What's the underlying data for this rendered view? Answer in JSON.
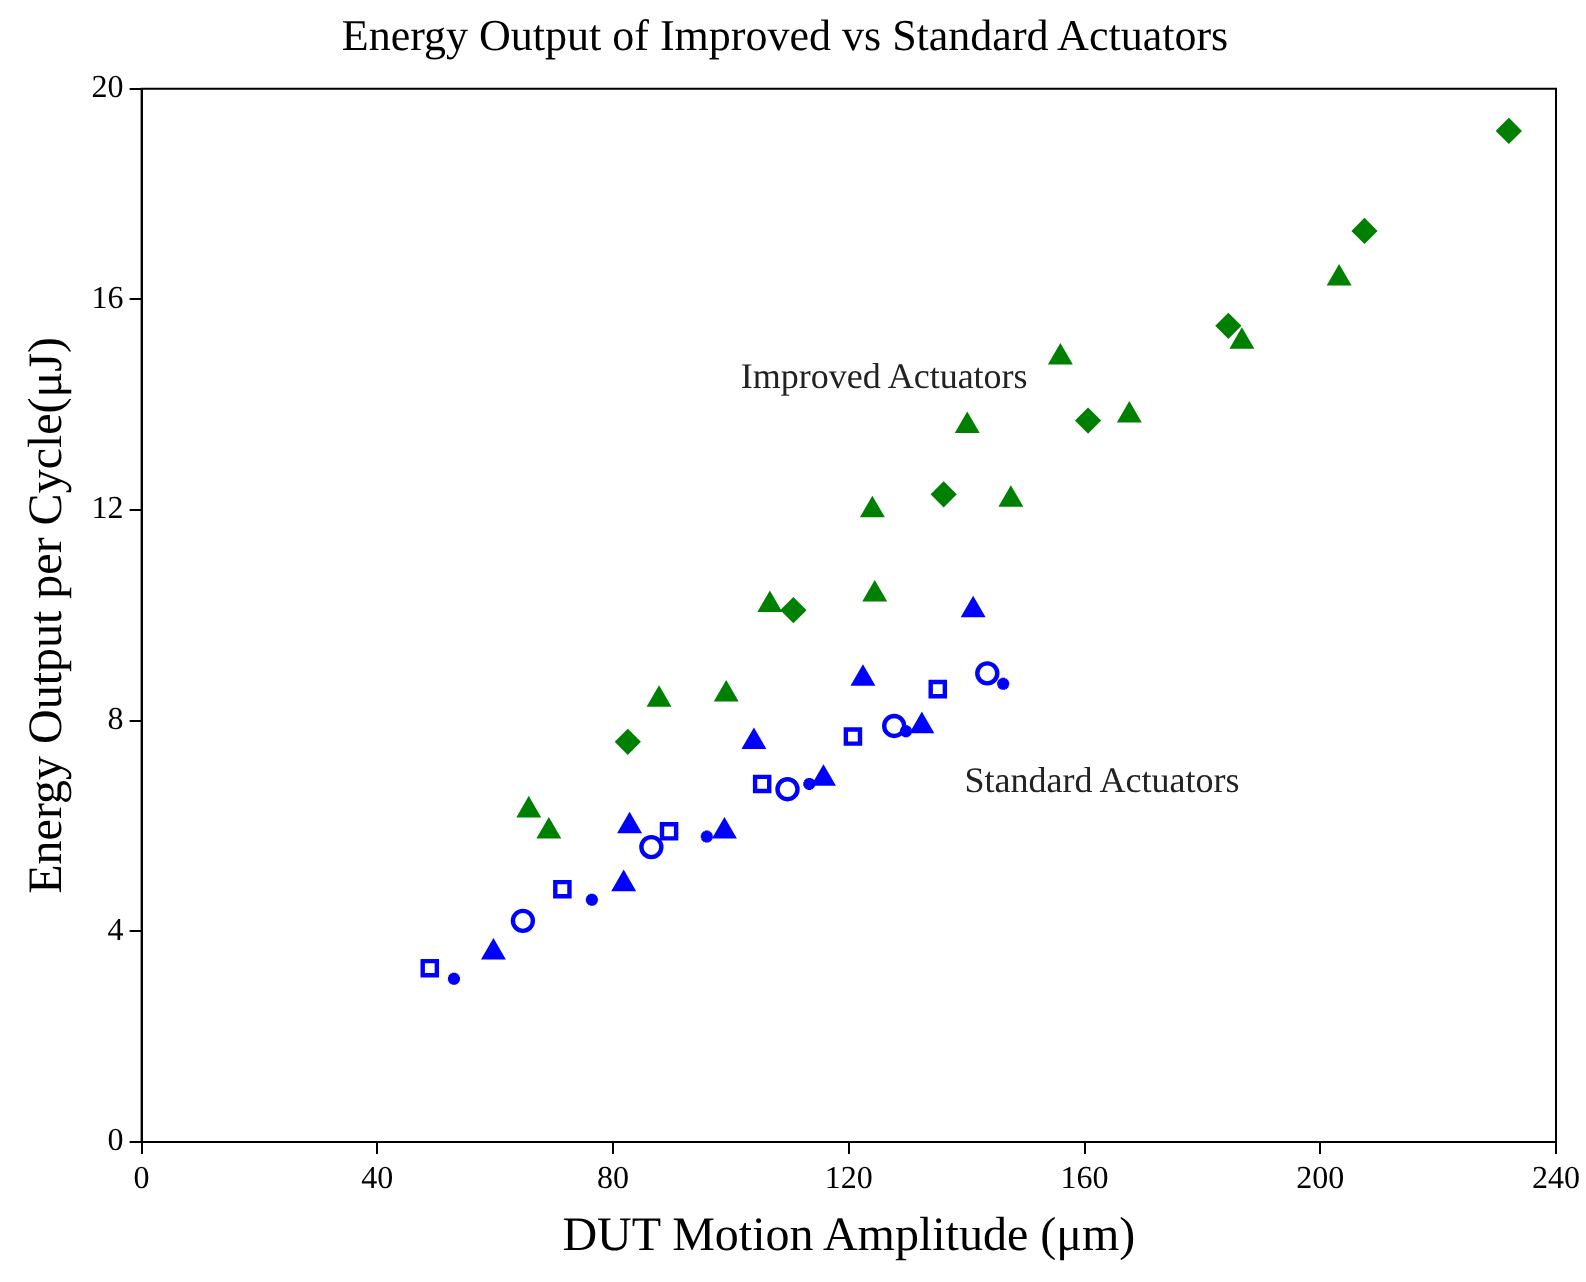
{
  "chart_data": {
    "type": "scatter",
    "title": "Energy Output of Improved vs Standard Actuators",
    "xlabel": "DUT Motion Amplitude (μm)",
    "ylabel": "Energy Output per Cycle(μJ)",
    "xlim": [
      0,
      240
    ],
    "xticks": [
      0,
      40,
      80,
      120,
      160,
      200,
      240
    ],
    "ylim": [
      0,
      20
    ],
    "yticks": [
      0,
      4,
      8,
      12,
      16,
      20
    ],
    "grid": false,
    "legend": false,
    "annotations": [
      "Improved Actuators",
      "Standard Actuators"
    ],
    "series": [
      {
        "color": "#0000ff",
        "marker": "square",
        "x": [
          48.9,
          71.4,
          89.5,
          105.3,
          120.7,
          135.1
        ],
        "values": [
          3.3,
          4.8,
          5.9,
          6.8,
          7.7,
          8.6
        ]
      },
      {
        "color": "#0000ff",
        "marker": "cross",
        "x": [
          53.0,
          76.4,
          95.9,
          113.3,
          129.7,
          146.2
        ],
        "values": [
          3.1,
          4.6,
          5.8,
          6.8,
          7.8,
          8.7
        ]
      },
      {
        "color": "#0000ff",
        "marker": "circle",
        "x": [
          64.7,
          86.5,
          109.6,
          127.7,
          143.5
        ],
        "values": [
          4.2,
          5.6,
          6.7,
          7.9,
          8.9
        ]
      },
      {
        "color": "#0000ff",
        "marker": "triangle",
        "x": [
          59.7,
          81.8,
          98.9,
          115.7,
          132.4
        ],
        "values": [
          3.6,
          4.9,
          5.9,
          6.9,
          7.9
        ]
      },
      {
        "color": "#0000ff",
        "marker": "triangle",
        "x": [
          82.8,
          103.9,
          122.4,
          141.1
        ],
        "values": [
          6.0,
          7.6,
          8.8,
          10.1
        ]
      },
      {
        "color": "#008000",
        "marker": "triangle",
        "x": [
          65.7,
          87.8,
          106.6,
          124.0,
          140.1,
          155.9
        ],
        "values": [
          6.3,
          8.4,
          10.2,
          12.0,
          13.6,
          14.9
        ]
      },
      {
        "color": "#008000",
        "marker": "diamond",
        "x": [
          82.5,
          110.6,
          136.1,
          160.6,
          184.4,
          207.5,
          232.0
        ],
        "values": [
          7.6,
          10.1,
          12.3,
          13.7,
          15.5,
          17.3,
          19.2
        ]
      },
      {
        "color": "#008000",
        "marker": "triangle",
        "x": [
          69.1,
          99.2,
          124.4,
          147.5,
          167.6,
          186.7,
          203.2
        ],
        "values": [
          5.9,
          8.5,
          10.4,
          12.2,
          13.8,
          15.2,
          16.4
        ]
      }
    ]
  }
}
